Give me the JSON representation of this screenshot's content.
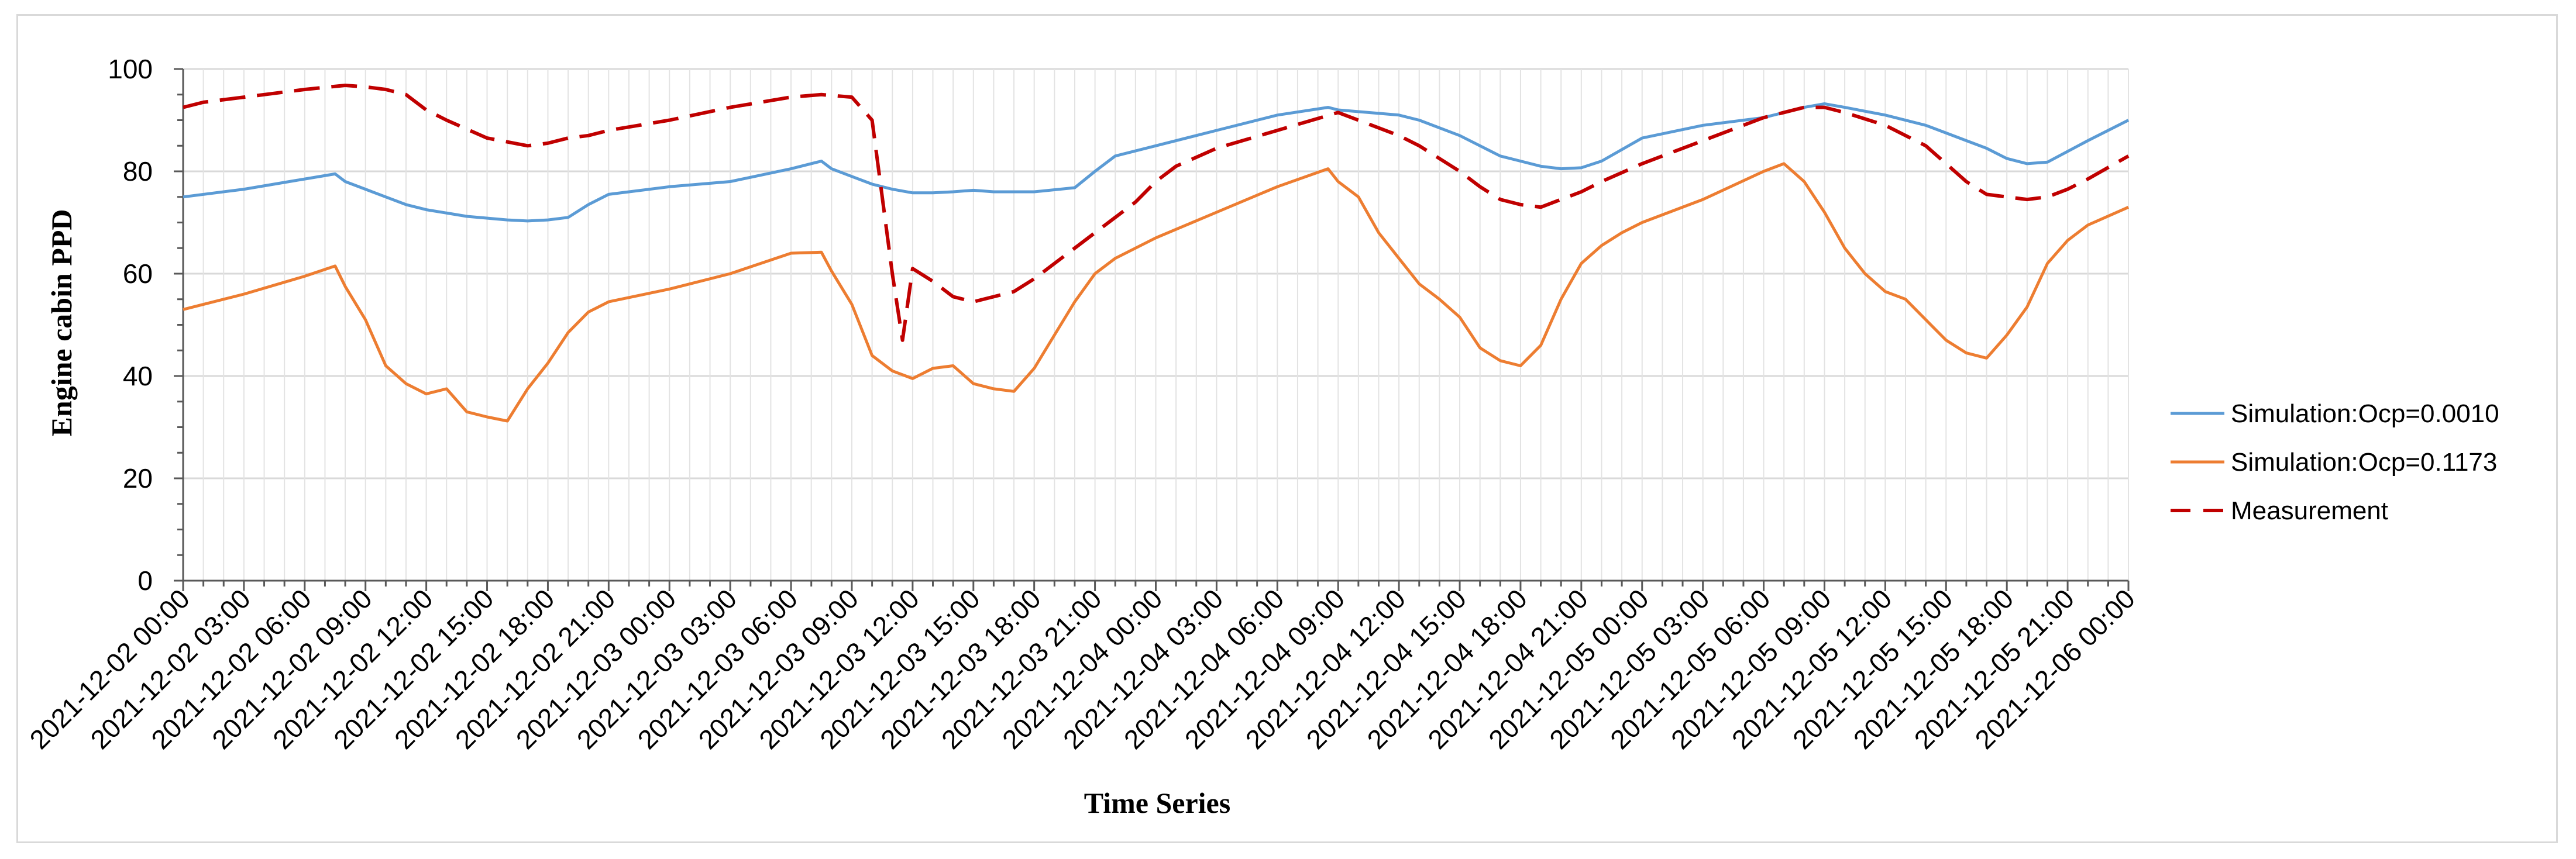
{
  "chart_data": {
    "type": "line",
    "title": "",
    "xlabel": "Time Series",
    "ylabel": "Engine cabin PPD",
    "ylim": [
      0,
      100
    ],
    "yticks": [
      "0",
      "20",
      "40",
      "60",
      "80",
      "100"
    ],
    "ytick_values": [
      0,
      20,
      40,
      60,
      80,
      100
    ],
    "xlim": [
      0,
      96
    ],
    "x_unit": "hours from 2021-12-02 00:00",
    "categories": [
      "2021-12-02 00:00",
      "2021-12-02 03:00",
      "2021-12-02 06:00",
      "2021-12-02 09:00",
      "2021-12-02 12:00",
      "2021-12-02 15:00",
      "2021-12-02 18:00",
      "2021-12-02 21:00",
      "2021-12-03 00:00",
      "2021-12-03 03:00",
      "2021-12-03 06:00",
      "2021-12-03 09:00",
      "2021-12-03 12:00",
      "2021-12-03 15:00",
      "2021-12-03 18:00",
      "2021-12-03 21:00",
      "2021-12-04 00:00",
      "2021-12-04 03:00",
      "2021-12-04 06:00",
      "2021-12-04 09:00",
      "2021-12-04 12:00",
      "2021-12-04 15:00",
      "2021-12-04 18:00",
      "2021-12-04 21:00",
      "2021-12-05 00:00",
      "2021-12-05 03:00",
      "2021-12-05 06:00",
      "2021-12-05 09:00",
      "2021-12-05 12:00",
      "2021-12-05 15:00",
      "2021-12-05 18:00",
      "2021-12-05 21:00",
      "2021-12-06 00:00"
    ],
    "grid": true,
    "legend_position": "right",
    "series": [
      {
        "name": "Simulation:Ocp=0.0010",
        "color": "#5b9bd5",
        "style": "solid",
        "x": [
          0,
          3,
          6,
          7.5,
          8,
          9,
          10,
          11,
          12,
          14,
          16,
          17,
          18,
          19,
          20,
          21,
          24,
          27,
          30,
          31.5,
          32,
          33,
          34,
          35,
          36,
          37,
          38,
          39,
          40,
          42,
          44,
          45,
          46,
          48,
          51,
          54,
          56.5,
          57,
          60,
          61,
          63,
          65,
          66,
          67,
          68,
          69,
          70,
          72,
          75,
          78,
          79,
          80,
          81,
          82,
          84,
          86,
          87,
          88,
          89,
          90,
          91,
          92,
          94,
          96
        ],
        "y": [
          75,
          76.5,
          78.5,
          79.5,
          78,
          76.5,
          75,
          73.5,
          72.5,
          71.2,
          70.5,
          70.3,
          70.5,
          71,
          73.5,
          75.5,
          77,
          78,
          80.5,
          82,
          80.5,
          79,
          77.5,
          76.5,
          75.8,
          75.8,
          76,
          76.3,
          76,
          76,
          76.8,
          80,
          83,
          85,
          88,
          91,
          92.5,
          92,
          91,
          90,
          87,
          83,
          82,
          81,
          80.5,
          80.7,
          82,
          86.5,
          89,
          90.5,
          91.5,
          92.5,
          93.2,
          92.5,
          91,
          89,
          87.5,
          86,
          84.5,
          82.5,
          81.5,
          81.8,
          86,
          90
        ]
      },
      {
        "name": "Simulation:Ocp=0.1173",
        "color": "#ed7d31",
        "style": "solid",
        "x": [
          0,
          3,
          6,
          7.5,
          8,
          9,
          10,
          11,
          12,
          13,
          14,
          15,
          16,
          17,
          18,
          19,
          20,
          21,
          24,
          27,
          30,
          31.5,
          32,
          33,
          34,
          35,
          36,
          37,
          38,
          39,
          40,
          41,
          42,
          43,
          44,
          45,
          46,
          48,
          51,
          54,
          56.5,
          57,
          58,
          59,
          60,
          61,
          62,
          63,
          64,
          65,
          66,
          67,
          68,
          69,
          70,
          71,
          72,
          75,
          78,
          79,
          80,
          81,
          82,
          83,
          84,
          85,
          86,
          87,
          88,
          89,
          90,
          91,
          92,
          93,
          94,
          96
        ],
        "y": [
          53,
          56,
          59.5,
          61.5,
          57.5,
          51,
          42,
          38.5,
          36.5,
          37.5,
          33,
          32,
          31.2,
          37.5,
          42.5,
          48.5,
          52.5,
          54.5,
          57,
          60,
          64,
          64.2,
          60.5,
          54,
          44,
          41,
          39.5,
          41.5,
          42,
          38.5,
          37.5,
          37,
          41.5,
          48,
          54.5,
          60,
          63,
          67,
          72,
          77,
          80.5,
          78,
          75,
          68,
          63,
          58,
          55,
          51.5,
          45.5,
          43,
          42,
          46,
          55,
          62,
          65.5,
          68,
          70,
          74.5,
          80,
          81.5,
          78,
          72,
          65,
          60,
          56.5,
          55,
          51,
          47,
          44.5,
          43.5,
          48,
          53.5,
          62,
          66.5,
          69.5,
          73
        ]
      },
      {
        "name": "Measurement",
        "color": "#c00000",
        "style": "dashed",
        "x": [
          0,
          1,
          2,
          4,
          6,
          8,
          9,
          10,
          11,
          12,
          13,
          15,
          17,
          18,
          19,
          20,
          21,
          24,
          27,
          30,
          31.5,
          33,
          34,
          35,
          35.5,
          36,
          37,
          38,
          39,
          40,
          41,
          42,
          44,
          45,
          46,
          47,
          48,
          49,
          51,
          54,
          57,
          60,
          61,
          63,
          64,
          65,
          66,
          67,
          68,
          69,
          70,
          72,
          75,
          78,
          80,
          81,
          82,
          84,
          86,
          87,
          88,
          89,
          90,
          91,
          92,
          93,
          94,
          96
        ],
        "y": [
          92.5,
          93.5,
          94,
          95,
          96,
          96.8,
          96.5,
          96,
          95,
          92,
          90,
          86.5,
          85,
          85.5,
          86.5,
          87,
          88,
          90,
          92.5,
          94.5,
          95,
          94.5,
          90,
          60,
          47,
          61,
          58.5,
          55.5,
          54.5,
          55.5,
          56.5,
          59,
          65,
          68,
          71,
          74,
          78,
          81,
          84.5,
          88,
          91.5,
          87,
          85,
          80,
          77,
          74.5,
          73.5,
          73,
          74.5,
          76,
          78,
          81.5,
          86,
          90.5,
          92.5,
          92.5,
          91.5,
          89,
          85,
          81.5,
          78,
          75.5,
          75,
          74.5,
          75,
          76.5,
          78.5,
          83
        ]
      }
    ]
  }
}
